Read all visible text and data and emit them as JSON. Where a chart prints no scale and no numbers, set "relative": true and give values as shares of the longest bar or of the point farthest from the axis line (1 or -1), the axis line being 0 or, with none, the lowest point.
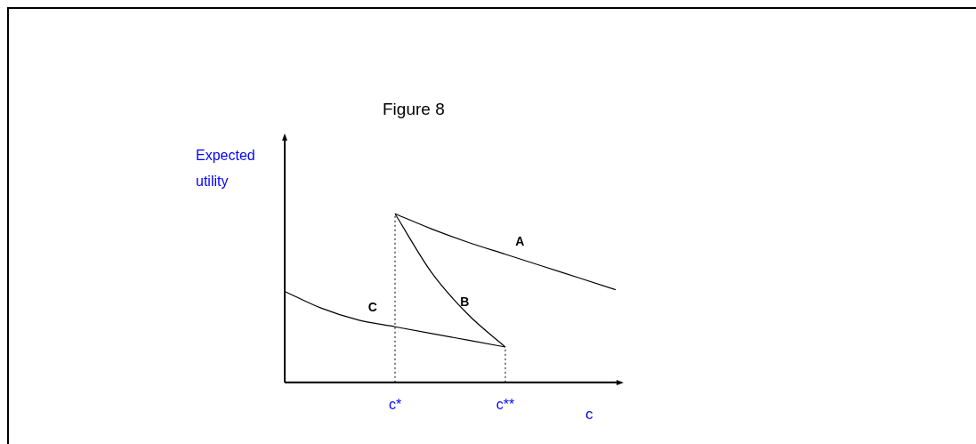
{
  "chart_data": {
    "type": "line",
    "title": "Figure 8",
    "xlabel": "c",
    "ylabel": "Expected utility",
    "relative": true,
    "legend": false,
    "marker": "none",
    "line_style": "solid",
    "categories": [
      null,
      null,
      null,
      "c*",
      null,
      null,
      "c**",
      null,
      null,
      null
    ],
    "series": [
      {
        "name": "A",
        "color": "#000000",
        "values": [
          null,
          null,
          null,
          1.0,
          0.91,
          0.83,
          0.76,
          0.69,
          0.62,
          0.55
        ]
      },
      {
        "name": "B",
        "color": "#000000",
        "values": [
          null,
          null,
          null,
          1.0,
          0.65,
          0.4,
          0.21,
          null,
          null,
          null
        ]
      },
      {
        "name": "C",
        "color": "#000000",
        "values": [
          0.54,
          0.44,
          0.37,
          0.33,
          0.29,
          0.25,
          0.21,
          null,
          null,
          null
        ]
      }
    ],
    "ref_lines": [
      {
        "axis": "x",
        "value": "c*",
        "line_style": "dotted",
        "color": "#000000"
      },
      {
        "axis": "x",
        "value": "c**",
        "line_style": "dotted",
        "color": "#000000"
      }
    ]
  }
}
